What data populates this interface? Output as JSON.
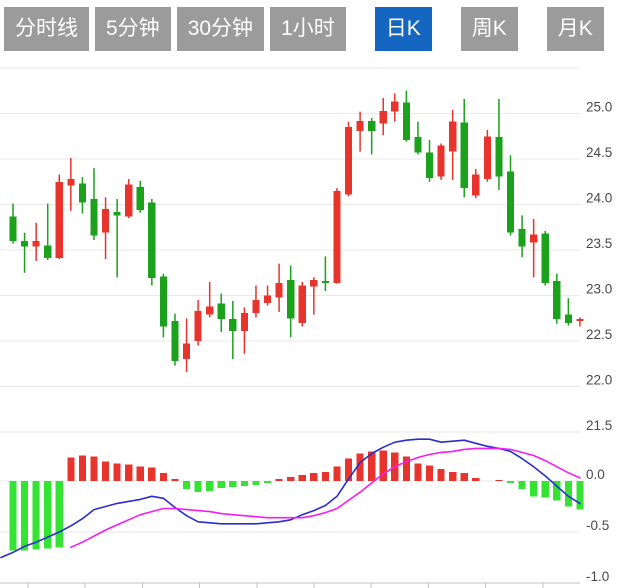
{
  "toolbar": {
    "buttons": [
      {
        "label": "分时线",
        "active": false
      },
      {
        "label": "5分钟",
        "active": false
      },
      {
        "label": "30分钟",
        "active": false
      },
      {
        "label": "1小时",
        "active": false
      },
      {
        "label": "日K",
        "active": true
      },
      {
        "label": "周K",
        "active": false
      },
      {
        "label": "月K",
        "active": false
      }
    ],
    "active_button_label": "日K"
  },
  "colors": {
    "button_bg": "#9b9b9b",
    "button_active_bg": "#1466c0",
    "button_text": "#ffffff",
    "up_red": "#e7352d",
    "down_green": "#1ba11b",
    "hist_green": "#35e335",
    "hist_red": "#e7352d",
    "dif_line_blue": "#2a2ecc",
    "dea_line_magenta": "#f31df3",
    "gridline": "#e9e9e9",
    "axis_line": "#c3c3c3",
    "axis_label": "#47494d",
    "background": "#ffffff"
  },
  "chart_data": {
    "type": "candlestick+macd",
    "title": "",
    "convention": "red = close >= open (up), green = close < open (down)",
    "price_axis": {
      "side": "right",
      "labels": [
        "25.0",
        "24.5",
        "24.0",
        "23.5",
        "23.0",
        "22.5",
        "22.0",
        "21.5"
      ],
      "values": [
        25.0,
        24.5,
        24.0,
        23.5,
        23.0,
        22.5,
        22.0,
        21.5
      ],
      "top_gridline_value": 25.5,
      "ylim": [
        21.5,
        25.5
      ],
      "grid": true
    },
    "macd_axis": {
      "side": "right",
      "labels": [
        "0.0",
        "-0.5",
        "-1.0"
      ],
      "values": [
        0.0,
        -0.5,
        -1.0
      ],
      "ylim": [
        -1.0,
        0.5
      ]
    },
    "x_axis": {
      "tick_count": 10,
      "labels_visible": false
    },
    "candles_ohlc": [
      [
        23.87,
        24.01,
        23.57,
        23.6
      ],
      [
        23.6,
        23.69,
        23.25,
        23.54
      ],
      [
        23.54,
        23.8,
        23.38,
        23.6
      ],
      [
        23.55,
        24.01,
        23.39,
        23.41
      ],
      [
        23.41,
        24.33,
        23.4,
        24.25
      ],
      [
        24.21,
        24.51,
        23.93,
        24.28
      ],
      [
        24.23,
        24.3,
        23.9,
        24.02
      ],
      [
        24.06,
        24.4,
        23.61,
        23.66
      ],
      [
        23.69,
        24.08,
        23.4,
        23.95
      ],
      [
        23.92,
        24.06,
        23.2,
        23.88
      ],
      [
        23.87,
        24.28,
        23.85,
        24.22
      ],
      [
        24.19,
        24.26,
        23.91,
        23.94
      ],
      [
        24.02,
        24.06,
        23.11,
        23.19
      ],
      [
        23.21,
        23.24,
        22.54,
        22.66
      ],
      [
        22.72,
        22.8,
        22.23,
        22.28
      ],
      [
        22.3,
        22.75,
        22.16,
        22.47
      ],
      [
        22.5,
        22.95,
        22.45,
        22.83
      ],
      [
        22.79,
        23.15,
        22.76,
        22.88
      ],
      [
        22.91,
        23.02,
        22.6,
        22.74
      ],
      [
        22.74,
        22.94,
        22.3,
        22.61
      ],
      [
        22.61,
        22.87,
        22.36,
        22.81
      ],
      [
        22.81,
        23.11,
        22.76,
        22.95
      ],
      [
        22.92,
        23.11,
        22.89,
        23.0
      ],
      [
        22.98,
        23.35,
        22.82,
        23.14
      ],
      [
        23.17,
        23.33,
        22.54,
        22.75
      ],
      [
        22.7,
        23.15,
        22.66,
        23.11
      ],
      [
        23.1,
        23.2,
        22.79,
        23.17
      ],
      [
        23.16,
        23.43,
        23.05,
        23.14
      ],
      [
        23.14,
        24.18,
        23.13,
        24.15
      ],
      [
        24.11,
        24.91,
        24.09,
        24.85
      ],
      [
        24.81,
        25.02,
        24.58,
        24.92
      ],
      [
        24.92,
        24.95,
        24.55,
        24.81
      ],
      [
        24.89,
        25.17,
        24.76,
        25.03
      ],
      [
        25.02,
        25.22,
        24.91,
        25.13
      ],
      [
        25.12,
        25.25,
        24.69,
        24.71
      ],
      [
        24.74,
        24.91,
        24.55,
        24.57
      ],
      [
        24.57,
        24.71,
        24.25,
        24.29
      ],
      [
        24.31,
        24.67,
        24.27,
        24.65
      ],
      [
        24.58,
        25.04,
        24.27,
        24.91
      ],
      [
        24.9,
        25.16,
        24.08,
        24.18
      ],
      [
        24.1,
        24.39,
        24.07,
        24.33
      ],
      [
        24.28,
        24.82,
        24.25,
        24.75
      ],
      [
        24.74,
        25.16,
        24.16,
        24.31
      ],
      [
        24.36,
        24.54,
        23.66,
        23.69
      ],
      [
        23.73,
        23.88,
        23.42,
        23.54
      ],
      [
        23.58,
        23.84,
        23.2,
        23.67
      ],
      [
        23.68,
        23.71,
        23.11,
        23.14
      ],
      [
        23.16,
        23.24,
        22.69,
        22.74
      ],
      [
        22.79,
        22.97,
        22.67,
        22.7
      ],
      [
        22.72,
        22.76,
        22.66,
        22.74
      ]
    ],
    "macd": {
      "histogram": [
        -0.68,
        -0.68,
        -0.67,
        -0.66,
        -0.65,
        0.23,
        0.25,
        0.24,
        0.19,
        0.17,
        0.16,
        0.14,
        0.13,
        0.08,
        0.02,
        -0.08,
        -0.11,
        -0.1,
        -0.07,
        -0.06,
        -0.05,
        -0.04,
        -0.02,
        0.02,
        0.04,
        0.06,
        0.08,
        0.09,
        0.14,
        0.22,
        0.27,
        0.29,
        0.3,
        0.28,
        0.24,
        0.17,
        0.15,
        0.12,
        0.09,
        0.08,
        0.03,
        0.0,
        0.01,
        -0.02,
        -0.08,
        -0.15,
        -0.16,
        -0.19,
        -0.25,
        -0.28
      ],
      "dif": [
        -0.7,
        -0.64,
        -0.6,
        -0.55,
        -0.5,
        -0.44,
        -0.37,
        -0.28,
        -0.25,
        -0.22,
        -0.2,
        -0.18,
        -0.15,
        -0.17,
        -0.26,
        -0.34,
        -0.4,
        -0.41,
        -0.42,
        -0.42,
        -0.42,
        -0.42,
        -0.41,
        -0.4,
        -0.38,
        -0.33,
        -0.29,
        -0.24,
        -0.15,
        0.02,
        0.18,
        0.27,
        0.33,
        0.38,
        0.4,
        0.41,
        0.41,
        0.38,
        0.39,
        0.4,
        0.37,
        0.34,
        0.32,
        0.29,
        0.22,
        0.14,
        0.05,
        -0.05,
        -0.15,
        -0.22
      ],
      "dif_lead_value": -0.75,
      "dea": [
        null,
        null,
        null,
        null,
        null,
        -0.65,
        -0.6,
        -0.54,
        -0.48,
        -0.43,
        -0.38,
        -0.33,
        -0.3,
        -0.27,
        -0.27,
        -0.28,
        -0.29,
        -0.3,
        -0.32,
        -0.33,
        -0.34,
        -0.35,
        -0.36,
        -0.36,
        -0.36,
        -0.36,
        -0.34,
        -0.31,
        -0.27,
        -0.19,
        -0.11,
        -0.02,
        0.07,
        0.14,
        0.19,
        0.23,
        0.26,
        0.28,
        0.29,
        0.31,
        0.32,
        0.32,
        0.32,
        0.31,
        0.28,
        0.25,
        0.2,
        0.14,
        0.08,
        0.03
      ]
    }
  }
}
